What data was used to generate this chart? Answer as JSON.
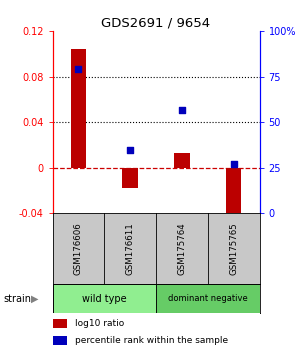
{
  "title": "GDS2691 / 9654",
  "samples": [
    "GSM176606",
    "GSM176611",
    "GSM175764",
    "GSM175765"
  ],
  "log10_ratio": [
    0.104,
    -0.018,
    0.013,
    -0.058
  ],
  "percentile_rank": [
    0.79,
    0.35,
    0.57,
    0.27
  ],
  "groups": [
    {
      "label": "wild type",
      "samples": [
        0,
        1
      ],
      "color": "#90EE90"
    },
    {
      "label": "dominant negative",
      "samples": [
        2,
        3
      ],
      "color": "#66CC66"
    }
  ],
  "ylim_left": [
    -0.04,
    0.12
  ],
  "ylim_right": [
    0.0,
    1.0
  ],
  "yticks_left": [
    -0.04,
    0.0,
    0.04,
    0.08,
    0.12
  ],
  "yticks_right": [
    0.0,
    0.25,
    0.5,
    0.75,
    1.0
  ],
  "ytick_labels_left": [
    "-0.04",
    "0",
    "0.04",
    "0.08",
    "0.12"
  ],
  "ytick_labels_right": [
    "0",
    "25",
    "50",
    "75",
    "100%"
  ],
  "bar_color": "#BB0000",
  "dot_color": "#0000BB",
  "hline_color": "#CC0000",
  "dotted_lines": [
    0.04,
    0.08
  ],
  "background_color": "#ffffff",
  "sample_box_color": "#C8C8C8",
  "strain_label": "strain",
  "legend_bar_label": "log10 ratio",
  "legend_dot_label": "percentile rank within the sample",
  "bar_width": 0.3
}
